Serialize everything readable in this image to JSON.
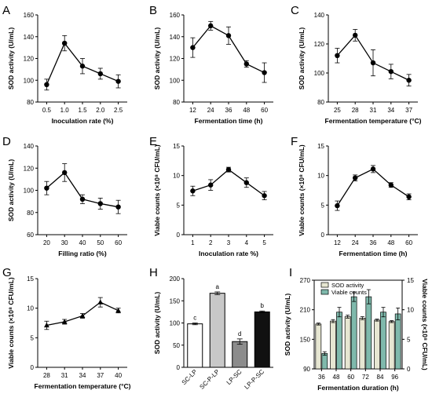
{
  "chart_data": [
    {
      "panel": "A",
      "type": "line",
      "marker": "circle",
      "xlabel": "Inoculation rate (%)",
      "ylabel": "SOD activity (U/mL)",
      "x": [
        0.5,
        1.0,
        1.5,
        2.0,
        2.5
      ],
      "xtick_labels": [
        "0.5",
        "1.0",
        "1.5",
        "2.0",
        "2.5"
      ],
      "values": [
        96,
        134,
        113,
        106,
        99
      ],
      "errors": [
        5,
        7,
        7,
        5,
        6
      ],
      "ylim": [
        80,
        160
      ],
      "yticks": [
        80,
        100,
        120,
        140,
        160
      ]
    },
    {
      "panel": "B",
      "type": "line",
      "marker": "circle",
      "xlabel": "Fermentation time (h)",
      "ylabel": "SOD activity (U/mL)",
      "x": [
        12,
        24,
        36,
        48,
        60
      ],
      "xtick_labels": [
        "12",
        "24",
        "36",
        "48",
        "60"
      ],
      "values": [
        130,
        150,
        141,
        115,
        107
      ],
      "errors": [
        9,
        4,
        8,
        3,
        9
      ],
      "ylim": [
        80,
        160
      ],
      "yticks": [
        80,
        100,
        120,
        140,
        160
      ]
    },
    {
      "panel": "C",
      "type": "line",
      "marker": "circle",
      "xlabel": "Fermentation temperature (°C)",
      "ylabel": "SOD activity (U/mL)",
      "x": [
        25,
        28,
        31,
        34,
        37
      ],
      "xtick_labels": [
        "25",
        "28",
        "31",
        "34",
        "37"
      ],
      "values": [
        112,
        126,
        107,
        101,
        95
      ],
      "errors": [
        5,
        4,
        9,
        5,
        4
      ],
      "ylim": [
        80,
        140
      ],
      "yticks": [
        80,
        100,
        120,
        140
      ]
    },
    {
      "panel": "D",
      "type": "line",
      "marker": "circle",
      "xlabel": "Filling ratio (%)",
      "ylabel": "SOD activity (U/mL)",
      "x": [
        20,
        30,
        40,
        50,
        60
      ],
      "xtick_labels": [
        "20",
        "30",
        "40",
        "50",
        "60"
      ],
      "values": [
        102,
        116,
        92,
        88,
        85
      ],
      "errors": [
        6,
        8,
        4,
        5,
        6
      ],
      "ylim": [
        60,
        140
      ],
      "yticks": [
        60,
        80,
        100,
        120,
        140
      ]
    },
    {
      "panel": "E",
      "type": "line",
      "marker": "circle",
      "xlabel": "Inoculation rate %)",
      "ylabel": "Viable counts (×10⁸ CFU/mL)",
      "x": [
        1,
        2,
        3,
        4,
        5
      ],
      "xtick_labels": [
        "1",
        "2",
        "3",
        "4",
        "5"
      ],
      "values": [
        7.4,
        8.4,
        11.0,
        8.8,
        6.6
      ],
      "errors": [
        0.8,
        0.9,
        0.4,
        0.8,
        0.7
      ],
      "ylim": [
        0,
        15
      ],
      "yticks": [
        0,
        5,
        10,
        15
      ]
    },
    {
      "panel": "F",
      "type": "line",
      "marker": "circle",
      "xlabel": "Fermentation time (h)",
      "ylabel": "Viable counts (×10⁸ CFU/mL)",
      "x": [
        12,
        24,
        36,
        48,
        60
      ],
      "xtick_labels": [
        "12",
        "24",
        "36",
        "48",
        "60"
      ],
      "values": [
        4.9,
        9.6,
        11.1,
        8.4,
        6.4
      ],
      "errors": [
        0.8,
        0.5,
        0.6,
        0.4,
        0.5
      ],
      "ylim": [
        0,
        15
      ],
      "yticks": [
        0,
        5,
        10,
        15
      ]
    },
    {
      "panel": "G",
      "type": "line",
      "marker": "triangle",
      "xlabel": "Fermentation temperature (°C)",
      "ylabel": "Viable counts (×10⁸ CFU/mL)",
      "x": [
        28,
        31,
        34,
        37,
        40
      ],
      "xtick_labels": [
        "28",
        "31",
        "34",
        "37",
        "40"
      ],
      "values": [
        7.1,
        7.7,
        8.7,
        11.0,
        9.6
      ],
      "errors": [
        0.7,
        0.4,
        0.4,
        0.8,
        0.4
      ],
      "ylim": [
        0,
        15
      ],
      "yticks": [
        0,
        5,
        10,
        15
      ]
    },
    {
      "panel": "H",
      "type": "bar",
      "ylabel": "SOD activity (U/mL)",
      "categories": [
        "SC-LP",
        "SC-P-LP",
        "LP-SC",
        "LP-P-SC"
      ],
      "values": [
        98,
        167,
        58,
        125
      ],
      "errors": [
        2,
        3,
        6,
        2
      ],
      "annotations": [
        "c",
        "a",
        "d",
        "b"
      ],
      "bar_colors": [
        "#ffffff",
        "#c8c8c8",
        "#8c8c8c",
        "#111111"
      ],
      "ylim": [
        0,
        200
      ],
      "yticks": [
        0,
        50,
        100,
        150,
        200
      ]
    },
    {
      "panel": "I",
      "type": "bar",
      "xlabel": "Fermentation duration (h)",
      "ylabel": "SOD activity (U/mL)",
      "y2label": "Viable counts (×10⁸ CFU/mL)",
      "categories": [
        "36",
        "48",
        "60",
        "72",
        "84",
        "96"
      ],
      "legend_position": "top-left",
      "series": [
        {
          "name": "SOD activity",
          "axis": "left",
          "color": "#e6e6d2",
          "values": [
            181,
            187,
            196,
            193,
            189,
            186
          ],
          "errors": [
            2,
            3,
            3,
            3,
            2,
            2
          ]
        },
        {
          "name": "Viable counts",
          "axis": "right",
          "color": "#7fb9ac",
          "values": [
            2.6,
            9.6,
            12.2,
            12.2,
            9.6,
            9.3
          ],
          "errors": [
            0.3,
            0.8,
            0.8,
            1.2,
            0.8,
            1.0
          ]
        }
      ],
      "ylim": [
        90,
        270
      ],
      "yticks": [
        90,
        150,
        210,
        270
      ],
      "y2lim": [
        0,
        15
      ],
      "y2ticks": [
        0,
        5,
        10,
        15
      ]
    }
  ]
}
